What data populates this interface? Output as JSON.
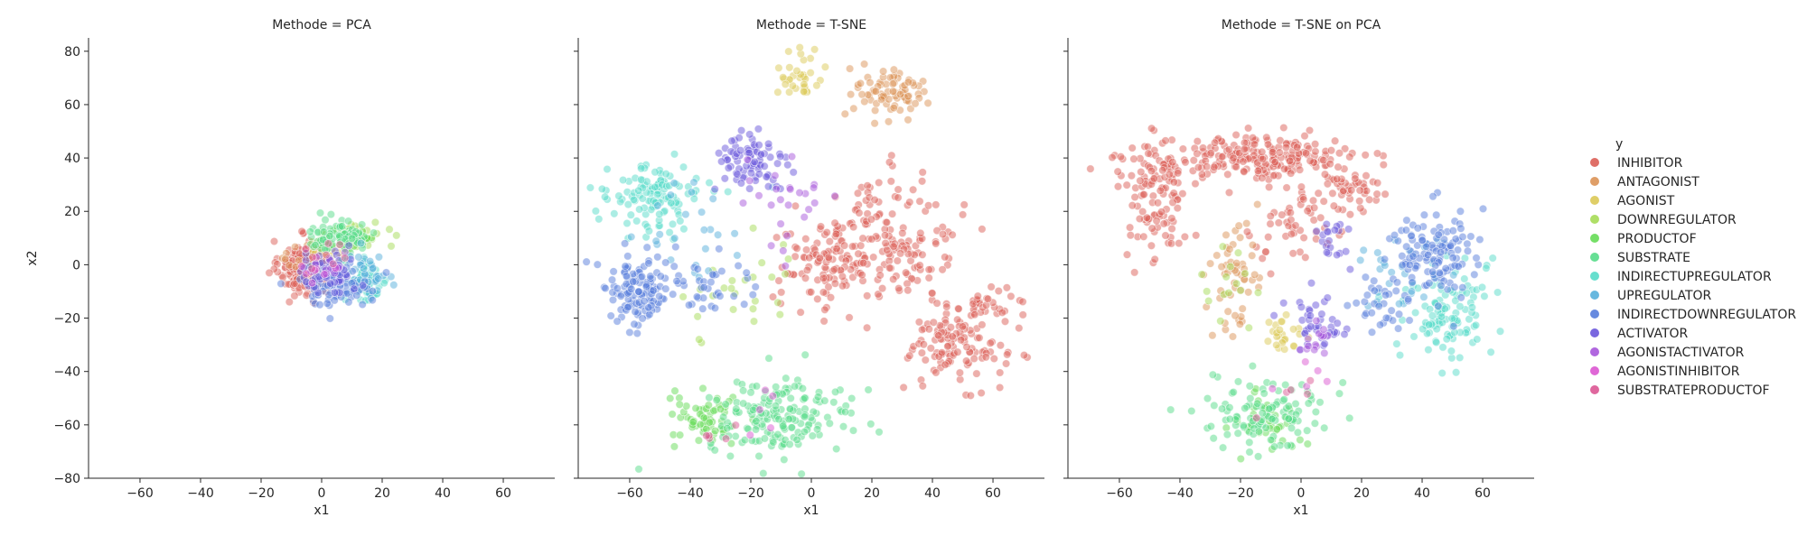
{
  "chart_data": {
    "type": "scatter",
    "shared_y": true,
    "ylabel": "x2",
    "ylim": [
      -80,
      85
    ],
    "yticks": [
      -80,
      -60,
      -40,
      -20,
      0,
      20,
      40,
      60,
      80
    ],
    "xlim": [
      -77,
      77
    ],
    "xticks": [
      -60,
      -40,
      -20,
      0,
      20,
      40,
      60
    ],
    "legend": {
      "title": "y",
      "placement": "right",
      "entries": [
        {
          "name": "INHIBITOR",
          "color": "#db5f57"
        },
        {
          "name": "ANTAGONIST",
          "color": "#db9457"
        },
        {
          "name": "AGONIST",
          "color": "#dbc957"
        },
        {
          "name": "DOWNREGULATOR",
          "color": "#a6db57"
        },
        {
          "name": "PRODUCTOF",
          "color": "#66db57"
        },
        {
          "name": "SUBSTRATE",
          "color": "#57db8a"
        },
        {
          "name": "INDIRECTUPREGULATOR",
          "color": "#57dbc9"
        },
        {
          "name": "UPREGULATOR",
          "color": "#57b0db"
        },
        {
          "name": "INDIRECTDOWNREGULATOR",
          "color": "#577ddb"
        },
        {
          "name": "ACTIVATOR",
          "color": "#6a57db"
        },
        {
          "name": "AGONISTACTIVATOR",
          "color": "#a757db"
        },
        {
          "name": "AGONISTINHIBITOR",
          "color": "#db57d1"
        },
        {
          "name": "SUBSTRATEPRODUCTOF",
          "color": "#db5794"
        }
      ]
    },
    "panels": [
      {
        "title": "Methode = PCA",
        "xlabel": "x1",
        "clusters": [
          {
            "category": "INHIBITOR",
            "n": 220,
            "cx": -6,
            "cy": -1,
            "sx": 4,
            "sy": 5
          },
          {
            "category": "ANTAGONIST",
            "n": 25,
            "cx": -3,
            "cy": 2,
            "sx": 4,
            "sy": 4
          },
          {
            "category": "AGONIST",
            "n": 20,
            "cx": 1,
            "cy": 6,
            "sx": 3,
            "sy": 3
          },
          {
            "category": "DOWNREGULATOR",
            "n": 40,
            "cx": 12,
            "cy": 10,
            "sx": 5,
            "sy": 3
          },
          {
            "category": "PRODUCTOF",
            "n": 30,
            "cx": 10,
            "cy": 10,
            "sx": 4,
            "sy": 3
          },
          {
            "category": "SUBSTRATE",
            "n": 70,
            "cx": 6,
            "cy": 11,
            "sx": 6,
            "sy": 3
          },
          {
            "category": "INDIRECTUPREGULATOR",
            "n": 80,
            "cx": 14,
            "cy": -6,
            "sx": 4,
            "sy": 4
          },
          {
            "category": "UPREGULATOR",
            "n": 40,
            "cx": 15,
            "cy": -4,
            "sx": 3,
            "sy": 4
          },
          {
            "category": "INDIRECTDOWNREGULATOR",
            "n": 100,
            "cx": 4,
            "cy": -7,
            "sx": 6,
            "sy": 4
          },
          {
            "category": "ACTIVATOR",
            "n": 50,
            "cx": 2,
            "cy": -3,
            "sx": 5,
            "sy": 4
          },
          {
            "category": "AGONISTACTIVATOR",
            "n": 10,
            "cx": 3,
            "cy": 0,
            "sx": 4,
            "sy": 3
          },
          {
            "category": "AGONISTINHIBITOR",
            "n": 8,
            "cx": 0,
            "cy": -2,
            "sx": 4,
            "sy": 3
          },
          {
            "category": "SUBSTRATEPRODUCTOF",
            "n": 8,
            "cx": 2,
            "cy": 4,
            "sx": 4,
            "sy": 3
          }
        ]
      },
      {
        "title": "Methode = T-SNE",
        "xlabel": "x1",
        "clusters": [
          {
            "category": "INHIBITOR",
            "n": 150,
            "cx": 28,
            "cy": 10,
            "sx": 10,
            "sy": 12
          },
          {
            "category": "INHIBITOR",
            "n": 110,
            "cx": 5,
            "cy": 0,
            "sx": 8,
            "sy": 9
          },
          {
            "category": "INHIBITOR",
            "n": 120,
            "cx": 48,
            "cy": -30,
            "sx": 8,
            "sy": 7
          },
          {
            "category": "INHIBITOR",
            "n": 30,
            "cx": 58,
            "cy": -15,
            "sx": 6,
            "sy": 3
          },
          {
            "category": "ANTAGONIST",
            "n": 80,
            "cx": 26,
            "cy": 65,
            "sx": 6,
            "sy": 5
          },
          {
            "category": "AGONIST",
            "n": 35,
            "cx": -3,
            "cy": 71,
            "sx": 4,
            "sy": 4
          },
          {
            "category": "DOWNREGULATOR",
            "n": 25,
            "cx": -25,
            "cy": -10,
            "sx": 12,
            "sy": 12
          },
          {
            "category": "PRODUCTOF",
            "n": 60,
            "cx": -35,
            "cy": -58,
            "sx": 6,
            "sy": 5
          },
          {
            "category": "SUBSTRATE",
            "n": 170,
            "cx": -10,
            "cy": -57,
            "sx": 12,
            "sy": 7
          },
          {
            "category": "INDIRECTUPREGULATOR",
            "n": 120,
            "cx": -52,
            "cy": 25,
            "sx": 8,
            "sy": 6
          },
          {
            "category": "UPREGULATOR",
            "n": 25,
            "cx": -38,
            "cy": 15,
            "sx": 8,
            "sy": 10
          },
          {
            "category": "INDIRECTDOWNREGULATOR",
            "n": 120,
            "cx": -58,
            "cy": -10,
            "sx": 6,
            "sy": 7
          },
          {
            "category": "INDIRECTDOWNREGULATOR",
            "n": 40,
            "cx": -35,
            "cy": -8,
            "sx": 8,
            "sy": 8
          },
          {
            "category": "ACTIVATOR",
            "n": 80,
            "cx": -20,
            "cy": 38,
            "sx": 6,
            "sy": 6
          },
          {
            "category": "AGONISTACTIVATOR",
            "n": 25,
            "cx": -8,
            "cy": 20,
            "sx": 10,
            "sy": 12
          },
          {
            "category": "AGONISTINHIBITOR",
            "n": 5,
            "cx": -20,
            "cy": -55,
            "sx": 8,
            "sy": 6
          },
          {
            "category": "SUBSTRATEPRODUCTOF",
            "n": 5,
            "cx": -30,
            "cy": -62,
            "sx": 5,
            "sy": 4
          }
        ]
      },
      {
        "title": "Methode = T-SNE on PCA",
        "xlabel": "x1",
        "clusters": [
          {
            "category": "INHIBITOR",
            "n": 110,
            "cx": -48,
            "cy": 25,
            "sx": 5,
            "sy": 12
          },
          {
            "category": "INHIBITOR",
            "n": 220,
            "cx": -15,
            "cy": 40,
            "sx": 18,
            "sy": 4
          },
          {
            "category": "INHIBITOR",
            "n": 40,
            "cx": 18,
            "cy": 28,
            "sx": 6,
            "sy": 4
          },
          {
            "category": "INHIBITOR",
            "n": 30,
            "cx": 5,
            "cy": 18,
            "sx": 6,
            "sy": 6
          },
          {
            "category": "INHIBITOR",
            "n": 25,
            "cx": -5,
            "cy": 12,
            "sx": 6,
            "sy": 8
          },
          {
            "category": "ANTAGONIST",
            "n": 55,
            "cx": -22,
            "cy": -5,
            "sx": 4,
            "sy": 10
          },
          {
            "category": "AGONIST",
            "n": 25,
            "cx": -7,
            "cy": -26,
            "sx": 3,
            "sy": 3
          },
          {
            "category": "DOWNREGULATOR",
            "n": 15,
            "cx": -26,
            "cy": -10,
            "sx": 5,
            "sy": 8
          },
          {
            "category": "PRODUCTOF",
            "n": 40,
            "cx": -12,
            "cy": -58,
            "sx": 6,
            "sy": 6
          },
          {
            "category": "SUBSTRATE",
            "n": 110,
            "cx": -10,
            "cy": -55,
            "sx": 10,
            "sy": 7
          },
          {
            "category": "INDIRECTUPREGULATOR",
            "n": 110,
            "cx": 48,
            "cy": -18,
            "sx": 7,
            "sy": 10
          },
          {
            "category": "UPREGULATOR",
            "n": 30,
            "cx": 32,
            "cy": 0,
            "sx": 7,
            "sy": 8
          },
          {
            "category": "INDIRECTDOWNREGULATOR",
            "n": 120,
            "cx": 44,
            "cy": 5,
            "sx": 7,
            "sy": 8
          },
          {
            "category": "INDIRECTDOWNREGULATOR",
            "n": 35,
            "cx": 28,
            "cy": -15,
            "sx": 6,
            "sy": 6
          },
          {
            "category": "ACTIVATOR",
            "n": 40,
            "cx": 5,
            "cy": -22,
            "sx": 5,
            "sy": 6
          },
          {
            "category": "ACTIVATOR",
            "n": 20,
            "cx": 12,
            "cy": 10,
            "sx": 3,
            "sy": 5
          },
          {
            "category": "AGONISTACTIVATOR",
            "n": 15,
            "cx": 4,
            "cy": -28,
            "sx": 4,
            "sy": 4
          },
          {
            "category": "AGONISTINHIBITOR",
            "n": 5,
            "cx": 0,
            "cy": -45,
            "sx": 5,
            "sy": 4
          },
          {
            "category": "SUBSTRATEPRODUCTOF",
            "n": 5,
            "cx": -5,
            "cy": -50,
            "sx": 5,
            "sy": 4
          }
        ]
      }
    ]
  }
}
